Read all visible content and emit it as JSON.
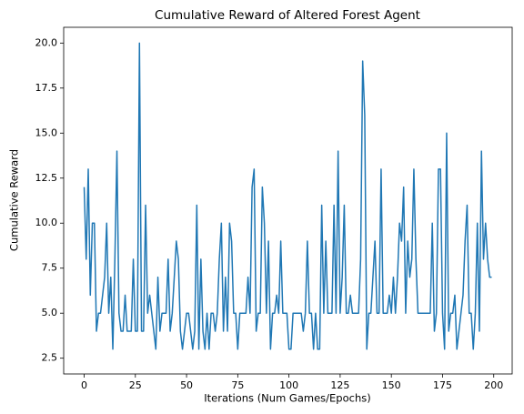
{
  "chart_data": {
    "type": "line",
    "title": "Cumulative Reward of Altered Forest Agent",
    "x_label": "Iterations (Num Games/Epochs)",
    "y_label": "Cumulative Reward",
    "x": [
      0,
      1,
      2,
      3,
      4,
      5,
      6,
      7,
      8,
      9,
      10,
      11,
      12,
      13,
      14,
      15,
      16,
      17,
      18,
      19,
      20,
      21,
      22,
      23,
      24,
      25,
      26,
      27,
      28,
      29,
      30,
      31,
      32,
      33,
      34,
      35,
      36,
      37,
      38,
      39,
      40,
      41,
      42,
      43,
      44,
      45,
      46,
      47,
      48,
      49,
      50,
      51,
      52,
      53,
      54,
      55,
      56,
      57,
      58,
      59,
      60,
      61,
      62,
      63,
      64,
      65,
      66,
      67,
      68,
      69,
      70,
      71,
      72,
      73,
      74,
      75,
      76,
      77,
      78,
      79,
      80,
      81,
      82,
      83,
      84,
      85,
      86,
      87,
      88,
      89,
      90,
      91,
      92,
      93,
      94,
      95,
      96,
      97,
      98,
      99,
      100,
      101,
      102,
      103,
      104,
      105,
      106,
      107,
      108,
      109,
      110,
      111,
      112,
      113,
      114,
      115,
      116,
      117,
      118,
      119,
      120,
      121,
      122,
      123,
      124,
      125,
      126,
      127,
      128,
      129,
      130,
      131,
      132,
      133,
      134,
      135,
      136,
      137,
      138,
      139,
      140,
      141,
      142,
      143,
      144,
      145,
      146,
      147,
      148,
      149,
      150,
      151,
      152,
      153,
      154,
      155,
      156,
      157,
      158,
      159,
      160,
      161,
      162,
      163,
      164,
      165,
      166,
      167,
      168,
      169,
      170,
      171,
      172,
      173,
      174,
      175,
      176,
      177,
      178,
      179,
      180,
      181,
      182,
      183,
      184,
      185,
      186,
      187,
      188,
      189,
      190,
      191,
      192,
      193,
      194,
      195,
      196,
      197,
      198,
      199
    ],
    "series": [
      {
        "name": "Cumulative Reward",
        "color": "#1f77b4",
        "values": [
          12,
          8,
          13,
          6,
          10,
          10,
          4,
          5,
          5,
          6,
          7,
          10,
          5,
          7,
          3,
          8,
          14,
          5,
          4,
          4,
          6,
          4,
          4,
          4,
          8,
          4,
          4,
          20,
          4,
          4,
          11,
          5,
          6,
          5,
          4,
          3,
          7,
          4,
          5,
          5,
          5,
          8,
          4,
          5,
          7,
          9,
          8,
          4,
          3,
          4,
          5,
          5,
          4,
          3,
          4,
          11,
          3,
          8,
          4,
          3,
          5,
          3,
          5,
          5,
          4,
          5,
          8,
          10,
          4,
          7,
          4,
          10,
          9,
          5,
          5,
          3,
          5,
          5,
          5,
          5,
          7,
          5,
          12,
          13,
          4,
          5,
          5,
          12,
          10,
          5,
          9,
          3,
          5,
          5,
          6,
          5,
          9,
          5,
          5,
          5,
          3,
          3,
          5,
          5,
          5,
          5,
          5,
          4,
          5,
          9,
          5,
          5,
          3,
          5,
          3,
          3,
          11,
          5,
          9,
          5,
          5,
          5,
          11,
          5,
          14,
          5,
          7,
          11,
          5,
          5,
          6,
          5,
          5,
          5,
          5,
          8,
          19,
          16,
          3,
          5,
          5,
          7,
          9,
          5,
          5,
          13,
          5,
          5,
          5,
          6,
          5,
          7,
          5,
          7,
          10,
          9,
          12,
          5,
          9,
          7,
          8,
          13,
          8,
          5,
          5,
          5,
          5,
          5,
          5,
          5,
          10,
          4,
          5,
          13,
          13,
          5,
          3,
          15,
          4,
          5,
          5,
          6,
          3,
          4,
          5,
          6,
          9,
          11,
          5,
          5,
          3,
          5,
          10,
          4,
          14,
          8,
          10,
          8,
          7,
          7
        ]
      }
    ],
    "xlim": [
      -10,
      209
    ],
    "ylim": [
      1.625,
      20.875
    ],
    "xticks": [
      0,
      25,
      50,
      75,
      100,
      125,
      150,
      175,
      200
    ],
    "yticks": [
      2.5,
      {
        "value": 5,
        "label": "5.0"
      },
      7.5,
      {
        "value": 10,
        "label": "10.0"
      },
      12.5,
      {
        "value": 15,
        "label": "15.0"
      },
      17.5,
      {
        "value": 20,
        "label": "20.0"
      }
    ]
  }
}
